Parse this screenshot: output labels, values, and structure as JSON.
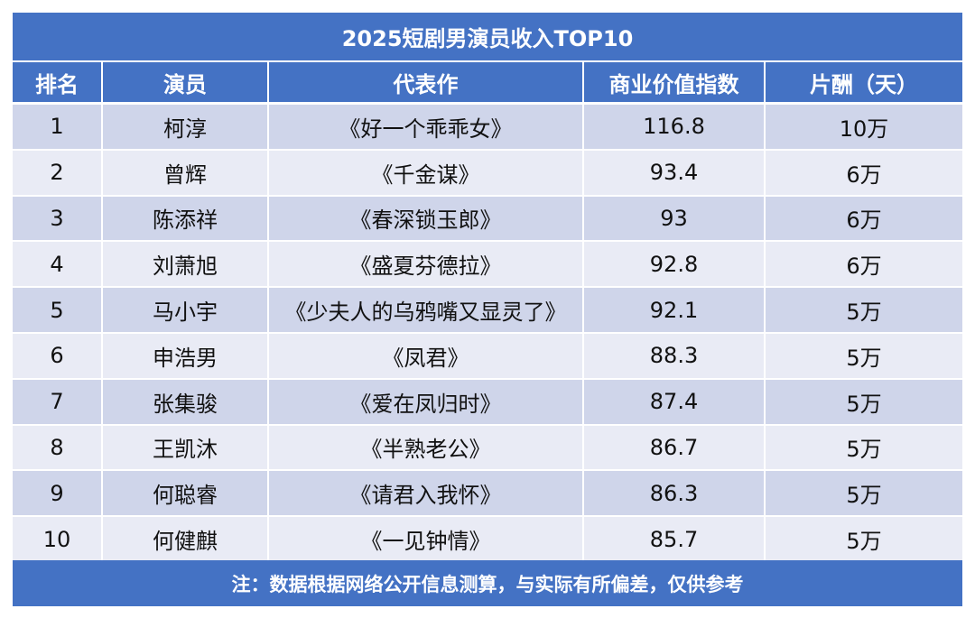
{
  "title": "2025短剧男演员收入TOP10",
  "headers": {
    "rank": "排名",
    "actor": "演员",
    "work": "代表作",
    "value": "商业价值指数",
    "pay": "片酬（天）"
  },
  "rows": [
    {
      "rank": "1",
      "actor": "柯淳",
      "work": "《好一个乖乖女》",
      "value": "116.8",
      "pay": "10万"
    },
    {
      "rank": "2",
      "actor": "曾辉",
      "work": "《千金谋》",
      "value": "93.4",
      "pay": "6万"
    },
    {
      "rank": "3",
      "actor": "陈添祥",
      "work": "《春深锁玉郎》",
      "value": "93",
      "pay": "6万"
    },
    {
      "rank": "4",
      "actor": "刘萧旭",
      "work": "《盛夏芬德拉》",
      "value": "92.8",
      "pay": "6万"
    },
    {
      "rank": "5",
      "actor": "马小宇",
      "work": "《少夫人的乌鸦嘴又显灵了》",
      "value": "92.1",
      "pay": "5万"
    },
    {
      "rank": "6",
      "actor": "申浩男",
      "work": "《凤君》",
      "value": "88.3",
      "pay": "5万"
    },
    {
      "rank": "7",
      "actor": "张集骏",
      "work": "《爱在凤归时》",
      "value": "87.4",
      "pay": "5万"
    },
    {
      "rank": "8",
      "actor": "王凯沐",
      "work": "《半熟老公》",
      "value": "86.7",
      "pay": "5万"
    },
    {
      "rank": "9",
      "actor": "何聪睿",
      "work": "《请君入我怀》",
      "value": "86.3",
      "pay": "5万"
    },
    {
      "rank": "10",
      "actor": "何健麒",
      "work": "《一见钟情》",
      "value": "85.7",
      "pay": "5万"
    }
  ],
  "footer": "注：数据根据网络公开信息测算，与实际有所偏差，仅供参考",
  "colors": {
    "header_blue": "#4472c4",
    "row_dark": "#cfd5ea",
    "row_light": "#e9ebf5"
  }
}
